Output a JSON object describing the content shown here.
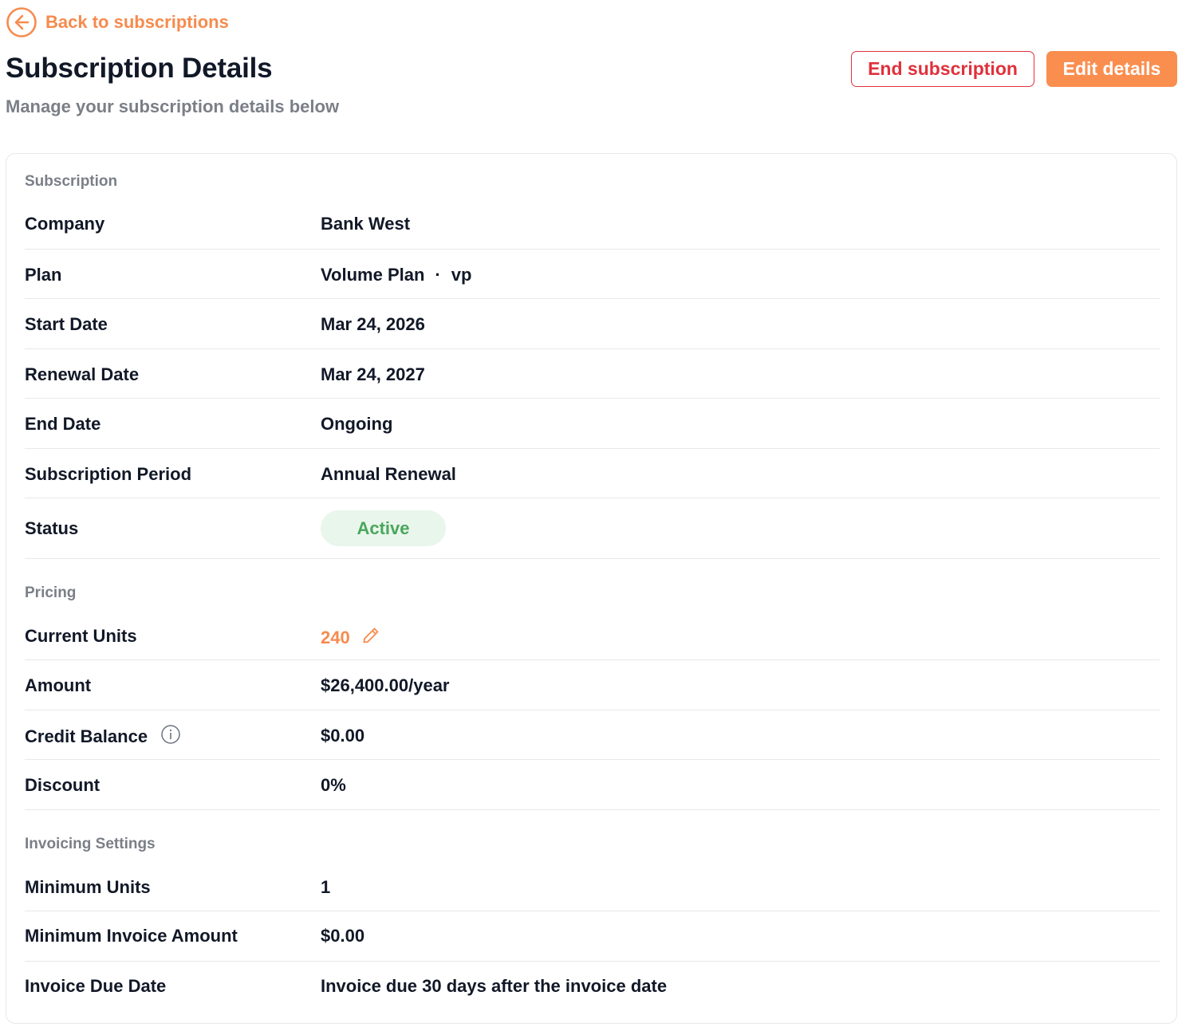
{
  "back_link": {
    "label": "Back to subscriptions",
    "icon": "arrow-left-circle-icon"
  },
  "header": {
    "title": "Subscription Details",
    "subtitle": "Manage your subscription details below",
    "end_button": "End subscription",
    "edit_button": "Edit details"
  },
  "colors": {
    "accent": "#f68b4e",
    "danger": "#e0313c",
    "active_badge_bg": "#e9f6ec",
    "active_badge_text": "#4aa65c"
  },
  "subscription": {
    "section_label": "Subscription",
    "company": {
      "label": "Company",
      "value": "Bank West"
    },
    "plan": {
      "label": "Plan",
      "name": "Volume Plan",
      "separator": "·",
      "code": "vp"
    },
    "start_date": {
      "label": "Start Date",
      "value": "Mar 24, 2026"
    },
    "renewal_date": {
      "label": "Renewal Date",
      "value": "Mar 24, 2027"
    },
    "end_date": {
      "label": "End Date",
      "value": "Ongoing"
    },
    "period": {
      "label": "Subscription Period",
      "value": "Annual Renewal"
    },
    "status": {
      "label": "Status",
      "value": "Active"
    }
  },
  "pricing": {
    "section_label": "Pricing",
    "current_units": {
      "label": "Current Units",
      "value": "240",
      "edit_icon": "pencil-icon"
    },
    "amount": {
      "label": "Amount",
      "value": "$26,400.00/year"
    },
    "credit_balance": {
      "label": "Credit Balance",
      "value": "$0.00",
      "info_icon": "info-icon"
    },
    "discount": {
      "label": "Discount",
      "value": "0%"
    }
  },
  "invoicing": {
    "section_label": "Invoicing Settings",
    "minimum_units": {
      "label": "Minimum Units",
      "value": "1"
    },
    "minimum_invoice_amount": {
      "label": "Minimum Invoice Amount",
      "value": "$0.00"
    },
    "invoice_due_date": {
      "label": "Invoice Due Date",
      "value": "Invoice due 30 days after the invoice date"
    }
  }
}
